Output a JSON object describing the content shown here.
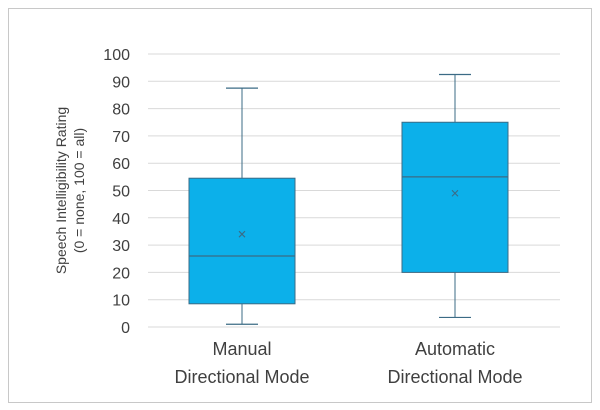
{
  "chart_data": {
    "type": "box",
    "title": "",
    "ylabel_lines": [
      "Speech Intelligibility Rating",
      "(0 = none, 100 = all)"
    ],
    "ylim": [
      0,
      100
    ],
    "yticks": [
      0,
      10,
      20,
      30,
      40,
      50,
      60,
      70,
      80,
      90,
      100
    ],
    "grid": true,
    "categories": [
      [
        "Manual",
        "Directional Mode"
      ],
      [
        "Automatic",
        "Directional Mode"
      ]
    ],
    "boxes": [
      {
        "whisker_low": 1,
        "q1": 8.5,
        "median": 26,
        "q3": 54.5,
        "whisker_high": 87.5,
        "mean": 34
      },
      {
        "whisker_low": 3.5,
        "q1": 20,
        "median": 55,
        "q3": 75,
        "whisker_high": 92.5,
        "mean": 49
      }
    ],
    "colors": {
      "box_fill": "#0cb0ea",
      "stroke": "#3b6b85",
      "grid": "#d9d9d9"
    }
  }
}
